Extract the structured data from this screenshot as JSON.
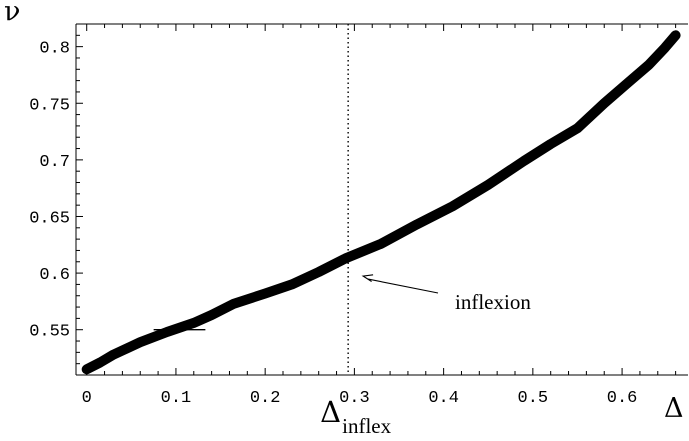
{
  "chart_data": {
    "type": "line",
    "title": "",
    "xlabel": "Δ",
    "ylabel": "ν",
    "xlim": [
      -0.012,
      0.675
    ],
    "ylim": [
      0.51,
      0.82
    ],
    "grid": false,
    "x_ticks": [
      {
        "value": 0,
        "label": "0"
      },
      {
        "value": 0.1,
        "label": "0.1"
      },
      {
        "value": 0.2,
        "label": "0.2"
      },
      {
        "value": 0.3,
        "label": "0.3"
      },
      {
        "value": 0.4,
        "label": "0.4"
      },
      {
        "value": 0.5,
        "label": "0.5"
      },
      {
        "value": 0.6,
        "label": "0.6"
      }
    ],
    "y_ticks": [
      {
        "value": 0.55,
        "label": "0.55"
      },
      {
        "value": 0.6,
        "label": "0.6"
      },
      {
        "value": 0.65,
        "label": "0.65"
      },
      {
        "value": 0.7,
        "label": "0.7"
      },
      {
        "value": 0.75,
        "label": "0.75"
      },
      {
        "value": 0.8,
        "label": "0.8"
      }
    ],
    "series": [
      {
        "x": [
          0.0,
          0.015,
          0.03,
          0.06,
          0.09,
          0.12,
          0.14,
          0.165,
          0.2,
          0.23,
          0.26,
          0.29,
          0.33,
          0.37,
          0.41,
          0.45,
          0.49,
          0.52,
          0.55,
          0.58,
          0.605,
          0.63,
          0.648,
          0.66
        ],
        "y": [
          0.515,
          0.521,
          0.528,
          0.539,
          0.548,
          0.556,
          0.563,
          0.573,
          0.582,
          0.59,
          0.601,
          0.613,
          0.626,
          0.643,
          0.659,
          0.678,
          0.699,
          0.714,
          0.728,
          0.75,
          0.767,
          0.784,
          0.799,
          0.81
        ]
      }
    ],
    "inflexion": {
      "x": 0.293,
      "marker_label": "Δ",
      "marker_subscript": "inflex",
      "annotation": "inflexion"
    },
    "colors": {
      "line": "#000000",
      "axes": "#000000",
      "background": "#ffffff"
    }
  }
}
